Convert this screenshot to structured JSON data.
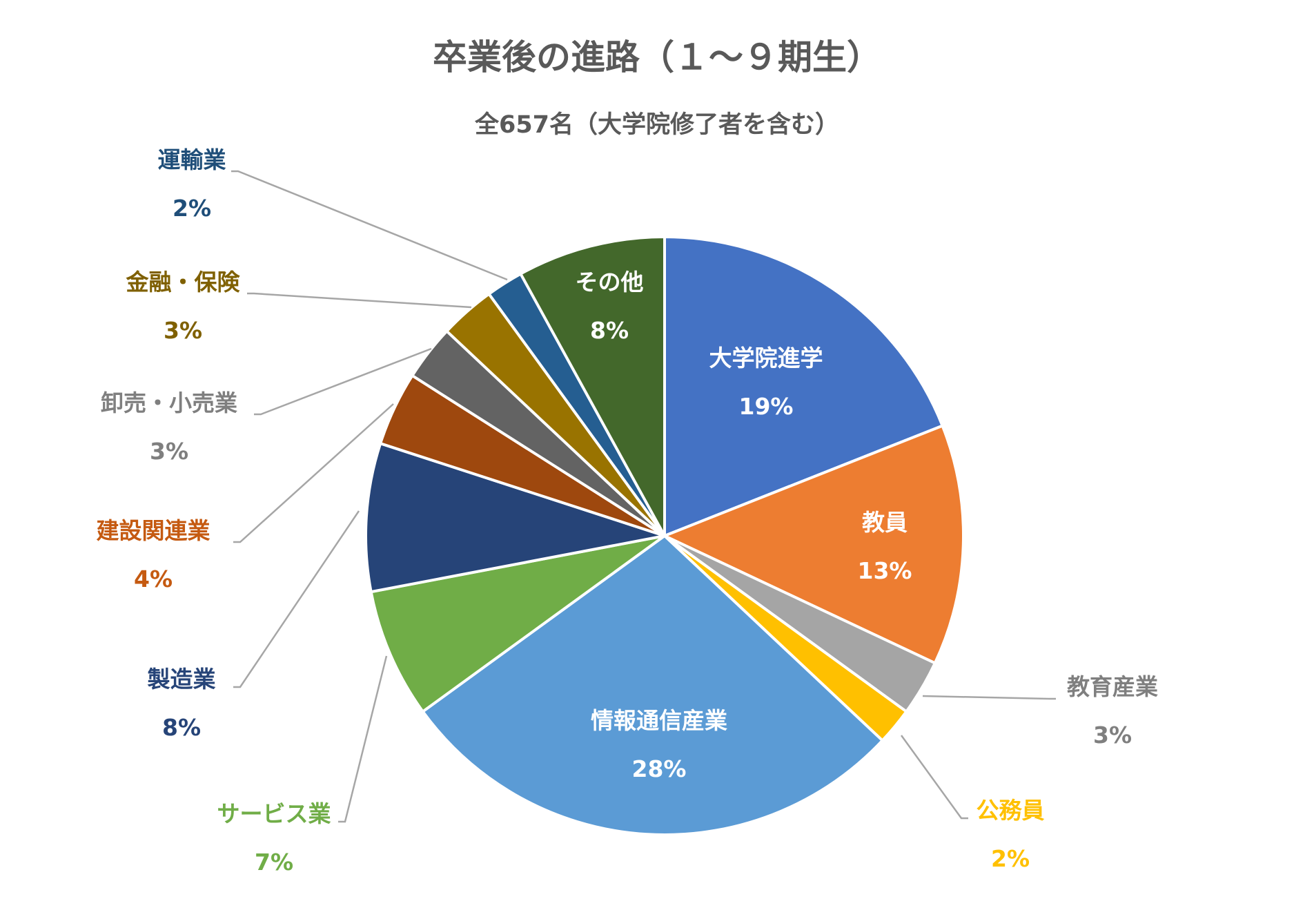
{
  "chart_data": {
    "type": "pie",
    "title": "卒業後の進路（１～９期生）",
    "subtitle": "全657名（大学院修了者を含む）",
    "slices": [
      {
        "label": "大学院進学",
        "value": 19,
        "value_label": "19%",
        "color": "#4472C4",
        "label_color": "#FFFFFF",
        "label_placement": "inside"
      },
      {
        "label": "教員",
        "value": 13,
        "value_label": "13%",
        "color": "#ED7D31",
        "label_color": "#FFFFFF",
        "label_placement": "inside"
      },
      {
        "label": "教育産業",
        "value": 3,
        "value_label": "3%",
        "color": "#A5A5A5",
        "label_color": "#7F7F7F",
        "label_placement": "outside"
      },
      {
        "label": "公務員",
        "value": 2,
        "value_label": "2%",
        "color": "#FFC000",
        "label_color": "#FFC000",
        "label_placement": "outside"
      },
      {
        "label": "情報通信産業",
        "value": 28,
        "value_label": "28%",
        "color": "#5B9BD5",
        "label_color": "#FFFFFF",
        "label_placement": "inside"
      },
      {
        "label": "サービス業",
        "value": 7,
        "value_label": "7%",
        "color": "#70AD47",
        "label_color": "#70AD47",
        "label_placement": "outside"
      },
      {
        "label": "製造業",
        "value": 8,
        "value_label": "8%",
        "color": "#264478",
        "label_color": "#264478",
        "label_placement": "outside"
      },
      {
        "label": "建設関連業",
        "value": 4,
        "value_label": "4%",
        "color": "#9E480E",
        "label_color": "#C55A11",
        "label_placement": "outside"
      },
      {
        "label": "卸売・小売業",
        "value": 3,
        "value_label": "3%",
        "color": "#636363",
        "label_color": "#7F7F7F",
        "label_placement": "outside"
      },
      {
        "label": "金融・保険",
        "value": 3,
        "value_label": "3%",
        "color": "#997300",
        "label_color": "#7F6000",
        "label_placement": "outside"
      },
      {
        "label": "運輸業",
        "value": 2,
        "value_label": "2%",
        "color": "#255E91",
        "label_color": "#1F4E79",
        "label_placement": "outside"
      },
      {
        "label": "その他",
        "value": 8,
        "value_label": "8%",
        "color": "#43682B",
        "label_color": "#FFFFFF",
        "label_placement": "inside"
      }
    ],
    "leader_line_color": "#A6A6A6"
  }
}
